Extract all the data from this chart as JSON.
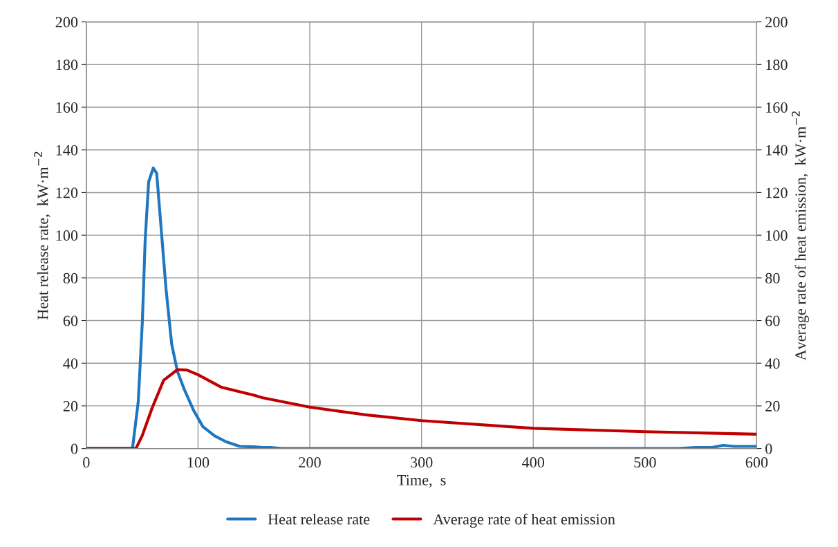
{
  "chart_data": {
    "type": "line",
    "xlabel": "Time,  s",
    "ylabel": "Heat release rate,  kW·m$^{−2}$",
    "y2label": "Average rate of heat emission,  kW·m$^{−2}$",
    "xlim": [
      0,
      600
    ],
    "xticks": [
      0,
      100,
      200,
      300,
      400,
      500,
      600
    ],
    "ylim": [
      0,
      200
    ],
    "yticks": [
      0,
      20,
      40,
      60,
      80,
      100,
      120,
      140,
      160,
      180,
      200
    ],
    "y2lim": [
      0,
      200
    ],
    "y2ticks": [
      0,
      20,
      40,
      60,
      80,
      100,
      120,
      140,
      160,
      180,
      200
    ],
    "grid": true,
    "legend": "bottom",
    "marker": "none",
    "line_style": "solid",
    "series": [
      {
        "name": "Heat release rate",
        "color": "#1f77c0",
        "x": [
          0,
          41.3,
          46.5,
          50.2,
          52.7,
          55.8,
          59.9,
          63,
          67,
          71.3,
          76.4,
          81.6,
          87.8,
          96,
          104.3,
          114.7,
          125,
          137.4,
          150,
          158,
          165,
          175,
          530,
          545,
          560,
          570,
          580,
          590,
          600
        ],
        "values": [
          0,
          0,
          22,
          60,
          98,
          125,
          131.5,
          129,
          103,
          75,
          49,
          36,
          27.6,
          17.9,
          10.3,
          6,
          3.2,
          1,
          0.8,
          0.5,
          0.5,
          0,
          0,
          0.5,
          0.5,
          1.5,
          1,
          1,
          1
        ]
      },
      {
        "name": "Average rate of heat emission",
        "color": "#c00000",
        "axis": "y2",
        "x": [
          0,
          44.4,
          50,
          58.9,
          69.2,
          81.6,
          90,
          100,
          121,
          150,
          158,
          200,
          250,
          300,
          400,
          500,
          600
        ],
        "values": [
          0,
          0,
          6,
          19,
          32,
          37,
          36.8,
          34.6,
          28.7,
          25,
          23.8,
          19.4,
          15.8,
          13.1,
          9.5,
          7.9,
          6.7
        ]
      }
    ]
  }
}
